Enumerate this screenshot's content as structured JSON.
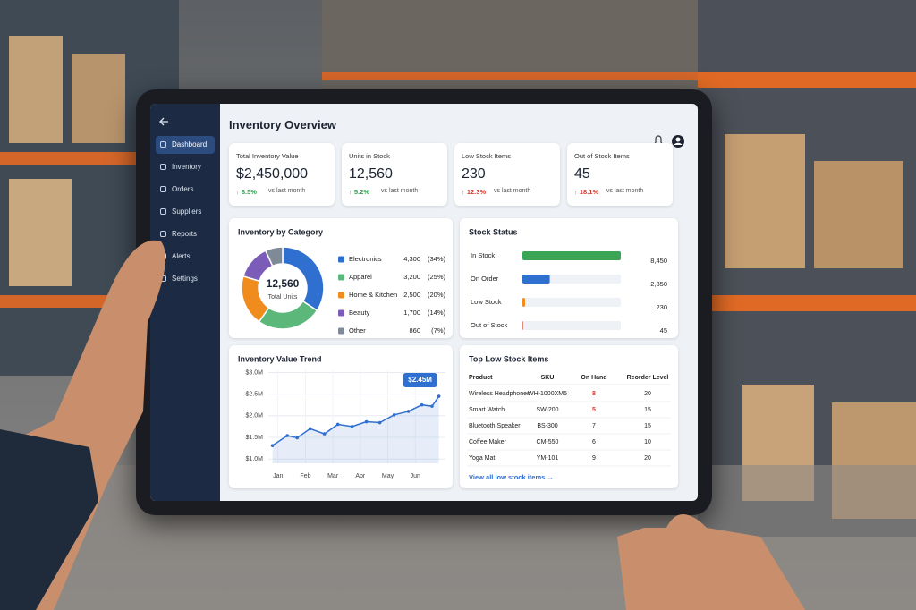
{
  "header": {
    "title": "Inventory Overview"
  },
  "sidebar": {
    "items": [
      "Dashboard",
      "Inventory",
      "Orders",
      "Suppliers",
      "Reports",
      "Alerts",
      "Settings"
    ],
    "active": 0
  },
  "kpis": [
    {
      "label": "Total Inventory Value",
      "value": "$2,450,000",
      "change": "8.5%",
      "note": "vs last month",
      "change_color": "#2e9e4f"
    },
    {
      "label": "Units in Stock",
      "value": "12,560",
      "change": "5.2%",
      "note": "vs last month",
      "change_color": "#2e9e4f"
    },
    {
      "label": "Low Stock Items",
      "value": "230",
      "change": "12.3%",
      "note": "vs last month",
      "change_color": "#d93a2b"
    },
    {
      "label": "Out of Stock Items",
      "value": "45",
      "change": "18.1%",
      "note": "vs last month",
      "change_color": "#d93a2b"
    }
  ],
  "chart_data": [
    {
      "type": "donut",
      "title": "Inventory by Category",
      "center_value": "12,560",
      "center_label": "Total Units",
      "categories": [
        "Electronics",
        "Apparel",
        "Home & Kitchen",
        "Beauty",
        "Other"
      ],
      "values": [
        4300,
        3200,
        2500,
        1700,
        860
      ],
      "value_labels": [
        "4,300",
        "3,200",
        "2,500",
        "1,700",
        "860"
      ],
      "share_labels": [
        "(34%)",
        "(25%)",
        "(20%)",
        "(14%)",
        "(7%)"
      ],
      "colors": [
        "#2f6fd0",
        "#5cb87a",
        "#f08c1e",
        "#7b5cb8",
        "#7f8a99"
      ]
    },
    {
      "type": "bar",
      "title": "Stock Status",
      "categories": [
        "In Stock",
        "On Order",
        "Low Stock",
        "Out of Stock"
      ],
      "values": [
        8450,
        2350,
        230,
        45
      ],
      "value_labels": [
        "8,450",
        "2,350",
        "230",
        "45"
      ],
      "colors": [
        "#3aa655",
        "#2f6fd0",
        "#f08c1e",
        "#d93a2b"
      ]
    },
    {
      "type": "line",
      "title": "Inventory Value Trend",
      "color": "#2f6fd0",
      "grid": true,
      "x": [
        -0.2,
        0.34,
        0.7,
        1.17,
        1.69,
        2.18,
        2.7,
        3.22,
        3.71,
        4.23,
        4.75,
        5.24,
        5.61,
        5.86
      ],
      "values": [
        1310000,
        1540000,
        1490000,
        1700000,
        1580000,
        1800000,
        1750000,
        1860000,
        1840000,
        2020000,
        2100000,
        2250000,
        2220000,
        2450000
      ],
      "xlim": [
        -0.35,
        6.1
      ],
      "xticks": [
        {
          "value": 0,
          "label": "Jan"
        },
        {
          "value": 1,
          "label": "Feb"
        },
        {
          "value": 2,
          "label": "Mar"
        },
        {
          "value": 3,
          "label": "Apr"
        },
        {
          "value": 4,
          "label": "May"
        },
        {
          "value": 5,
          "label": "Jun"
        }
      ],
      "ylim": [
        900000,
        3050000
      ],
      "yticks": [
        {
          "value": 1000000,
          "label": "$1.0M"
        },
        {
          "value": 1500000,
          "label": "$1.5M"
        },
        {
          "value": 2000000,
          "label": "$2.0M"
        },
        {
          "value": 2500000,
          "label": "$2.5M"
        },
        {
          "value": 3000000,
          "label": "$3.0M"
        }
      ],
      "annotation": "$2.45M"
    }
  ],
  "table": {
    "title": "Top Low Stock Items",
    "columns": [
      "Product",
      "SKU",
      "On Hand",
      "Reorder Level"
    ],
    "rows": [
      [
        "Wireless Headphones",
        "WH-1000XM5",
        8,
        20
      ],
      [
        "Smart Watch",
        "SW-200",
        5,
        15
      ],
      [
        "Bluetooth Speaker",
        "BS-300",
        7,
        15
      ],
      [
        "Coffee Maker",
        "CM-550",
        6,
        10
      ],
      [
        "Yoga Mat",
        "YM-101",
        9,
        20
      ]
    ],
    "alert_color": "#d93a2b",
    "link": "View all low stock items →"
  }
}
